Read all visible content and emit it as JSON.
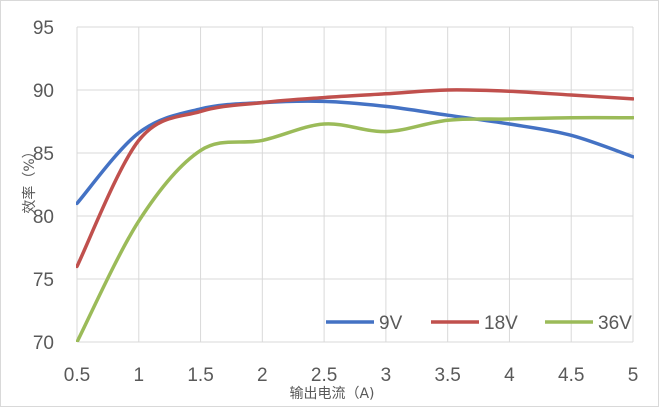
{
  "chart_data": {
    "type": "line",
    "title": "",
    "xlabel": "输出电流（A)",
    "ylabel": "效率（%）",
    "xlim": [
      0.5,
      5
    ],
    "ylim": [
      70,
      95
    ],
    "x_ticks": [
      "0.5",
      "1",
      "1.5",
      "2",
      "2.5",
      "3",
      "3.5",
      "4",
      "4.5",
      "5"
    ],
    "y_ticks": [
      "70",
      "75",
      "80",
      "85",
      "90",
      "95"
    ],
    "grid": "vertical and horizontal",
    "legend_position": "bottom-right",
    "x": [
      0.5,
      1,
      1.5,
      2,
      2.5,
      3,
      3.5,
      4,
      4.5,
      5
    ],
    "series": [
      {
        "name": "9V",
        "color": "#4472c4",
        "values": [
          81.0,
          86.6,
          88.5,
          89.0,
          89.1,
          88.7,
          88.0,
          87.3,
          86.4,
          84.7
        ]
      },
      {
        "name": "18V",
        "color": "#c0504d",
        "values": [
          76.0,
          86.0,
          88.3,
          89.0,
          89.4,
          89.7,
          90.0,
          89.9,
          89.6,
          89.3
        ]
      },
      {
        "name": "36V",
        "color": "#9bbb59",
        "values": [
          70.0,
          79.6,
          85.2,
          86.0,
          87.3,
          86.7,
          87.6,
          87.7,
          87.8,
          87.8
        ]
      }
    ]
  }
}
